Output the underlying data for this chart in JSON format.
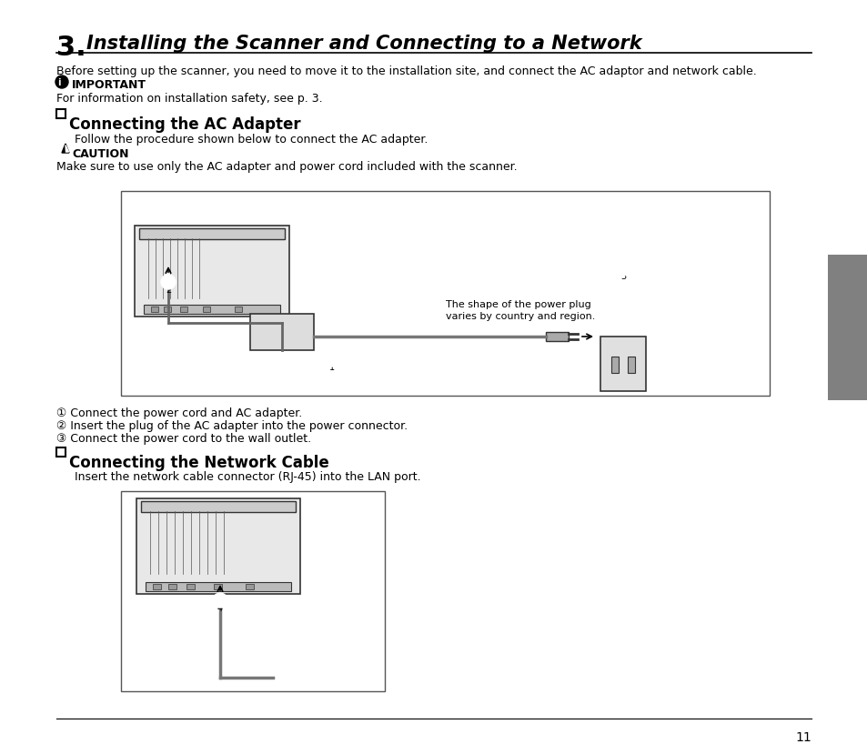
{
  "title_number": "3.",
  "title_text": "Installing the Scanner and Connecting to a Network",
  "intro_text": "Before setting up the scanner, you need to move it to the installation site, and connect the AC adaptor and network cable.",
  "important_label": "IMPORTANT",
  "important_text": "For information on installation safety, see p. 3.",
  "section1_title": "Connecting the AC Adapter",
  "section1_intro": "Follow the procedure shown below to connect the AC adapter.",
  "caution_label": "CAUTION",
  "caution_text": "Make sure to use only the AC adapter and power cord included with the scanner.",
  "step1": "① Connect the power cord and AC adapter.",
  "step2": "② Insert the plug of the AC adapter into the power connector.",
  "step3": "③ Connect the power cord to the wall outlet.",
  "section2_title": "Connecting the Network Cable",
  "section2_intro": "Insert the network cable connector (RJ-45) into the LAN port.",
  "power_plug_note1": "The shape of the power plug",
  "power_plug_note2": "varies by country and region.",
  "page_number": "11",
  "bg_color": "#ffffff",
  "text_color": "#000000",
  "box_color": "#000000",
  "tab_color": "#808080",
  "title_font_size": 15,
  "body_font_size": 9,
  "section_font_size": 12,
  "small_font_size": 8
}
